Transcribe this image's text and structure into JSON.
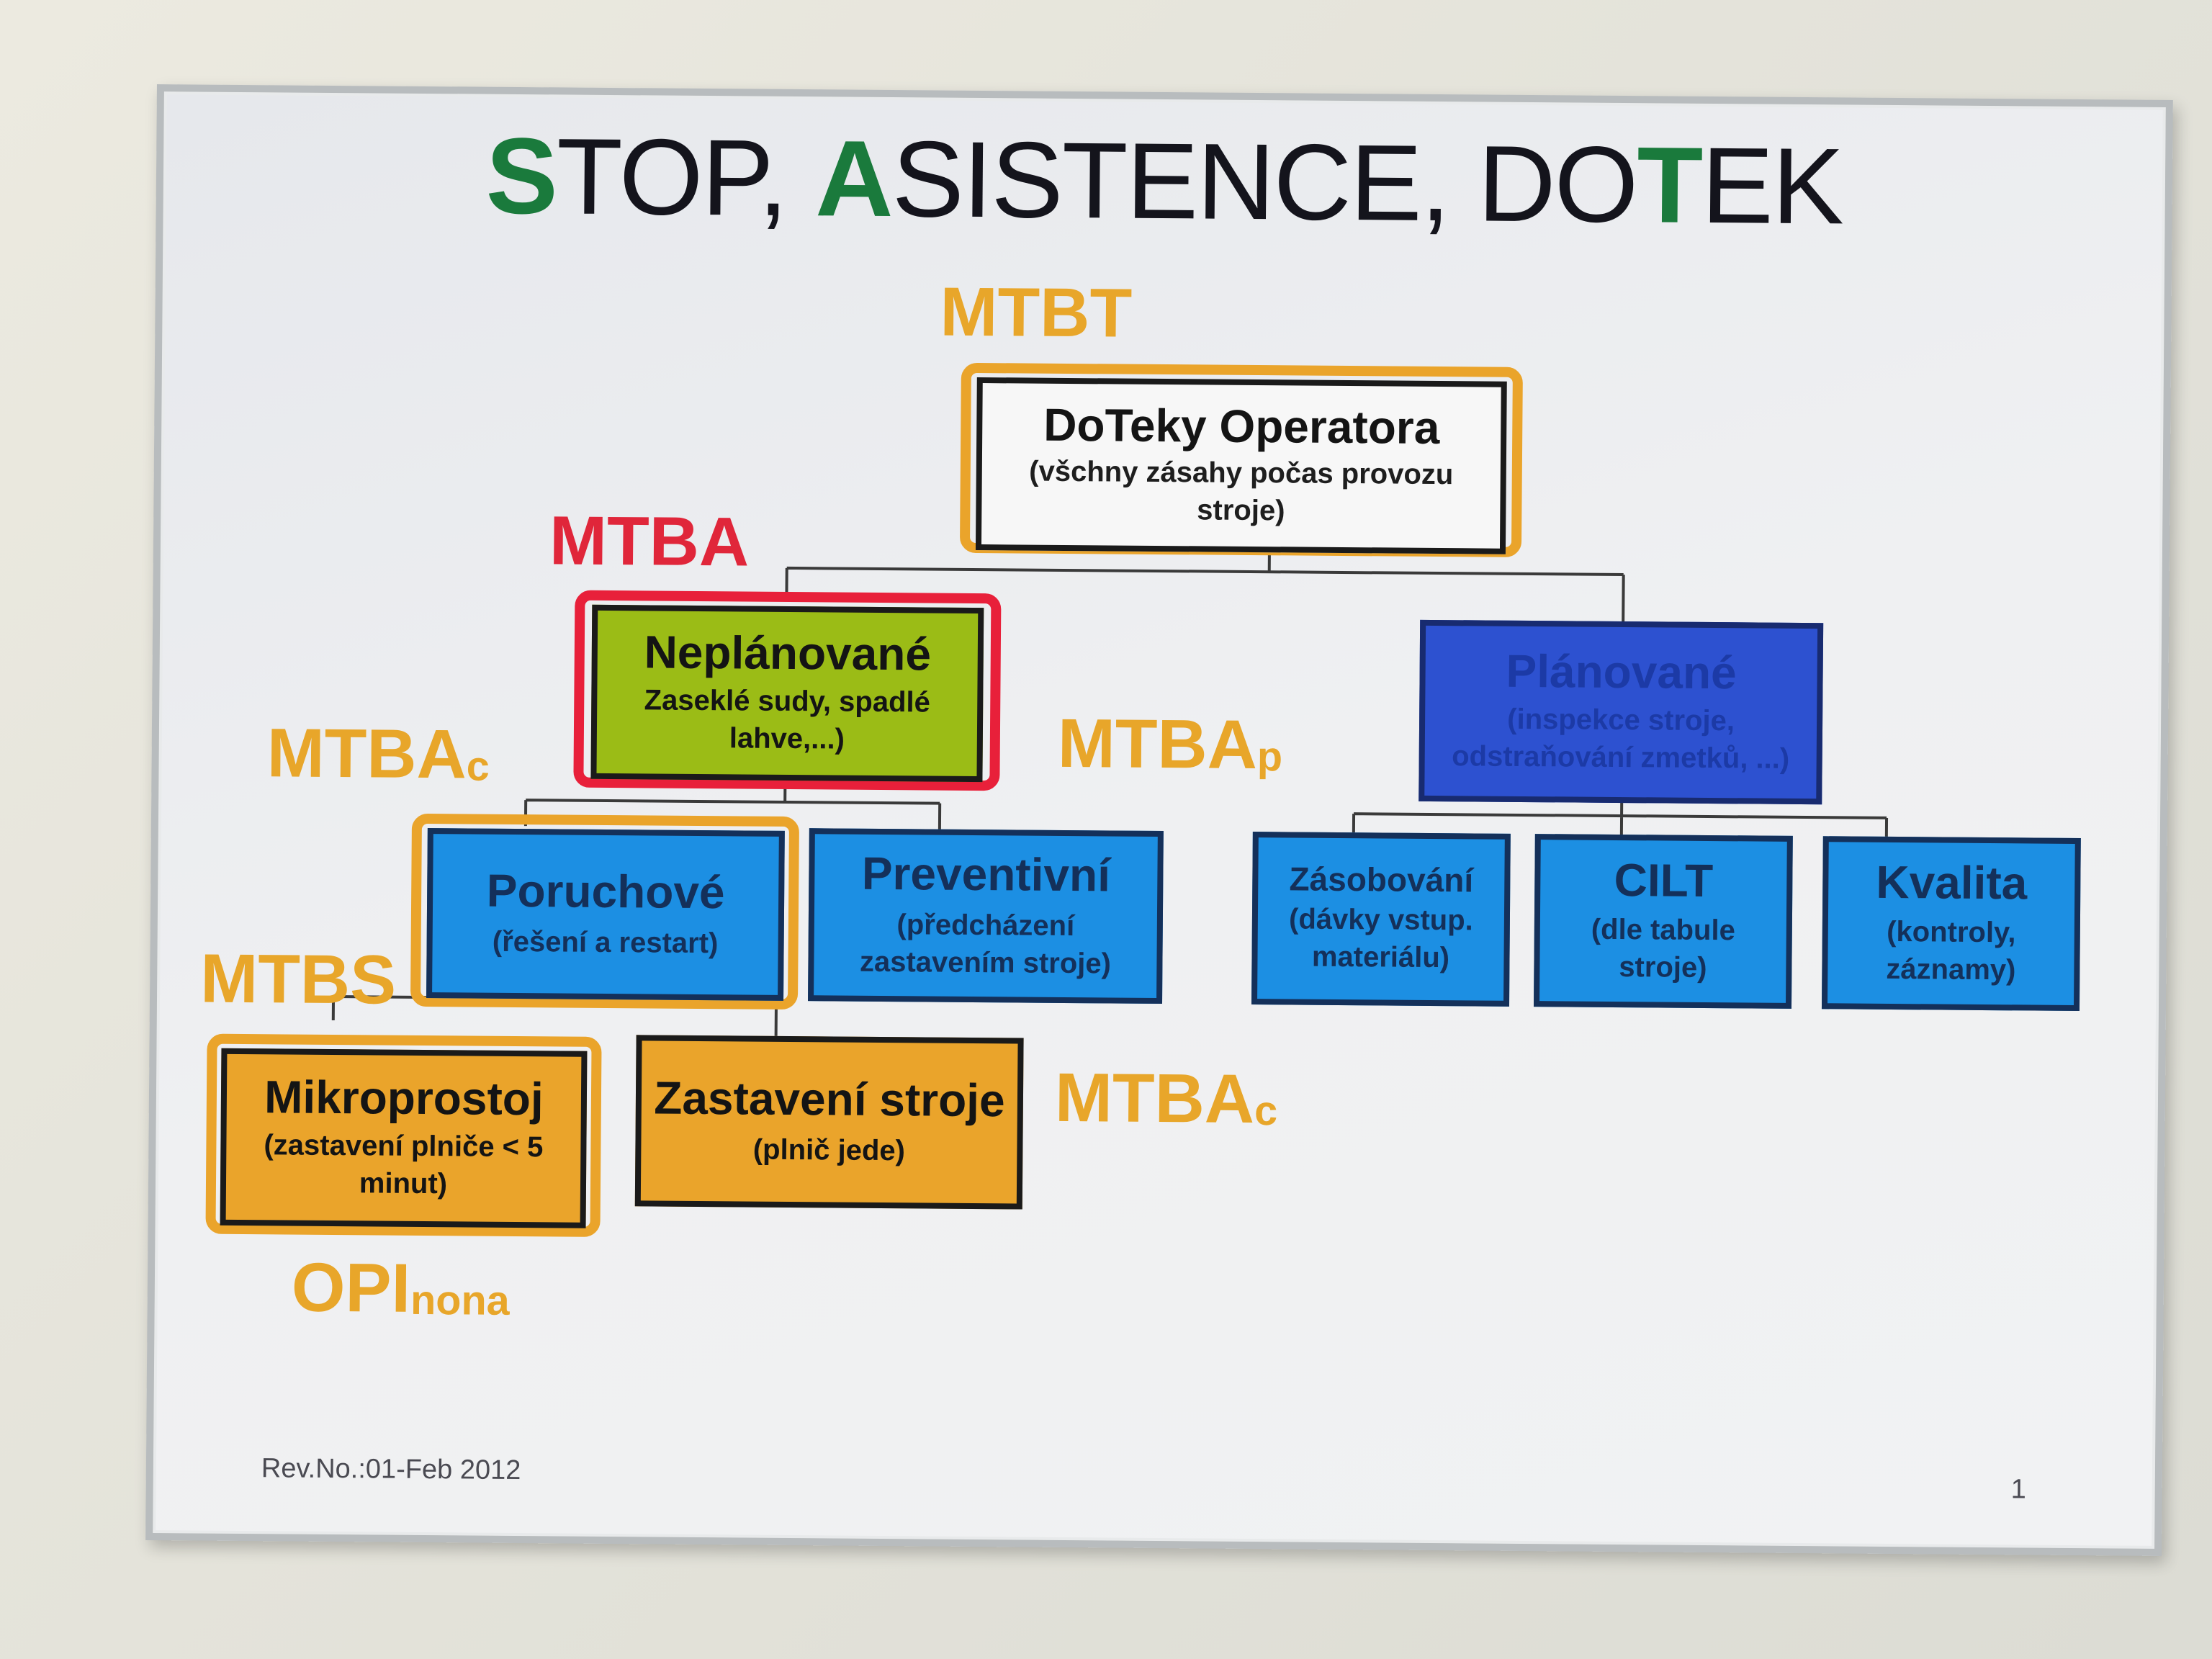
{
  "title": {
    "p1": "S",
    "p2": "TOP, ",
    "p3": "A",
    "p4": "SISTENCE, DO",
    "p5": "T",
    "p6": "EK"
  },
  "metrics": {
    "mtbt": "MTBT",
    "mtba": "MTBA",
    "mtbac_left": {
      "main": "MTBA",
      "sub": "c"
    },
    "mtbap": {
      "main": "MTBA",
      "sub": "p"
    },
    "mtbs": "MTBS",
    "mtbac_right": {
      "main": "MTBA",
      "sub": "c"
    },
    "opi": {
      "main": "OPI",
      "sub": "nona"
    }
  },
  "boxes": {
    "doteky": {
      "title": "DoTeky Operatora",
      "sub": "(všchny zásahy počas provozu stroje)"
    },
    "neplanovane": {
      "title": "Neplánované",
      "sub": "Zaseklé sudy, spadlé lahve,...)"
    },
    "planovane": {
      "title": "Plánované",
      "sub": "(inspekce stroje, odstraňování zmetků, ...)"
    },
    "poruchove": {
      "title": "Poruchové",
      "sub": "(řešení a restart)"
    },
    "preventivni": {
      "title": "Preventivní",
      "sub": "(předcházení zastavením stroje)"
    },
    "zasobovani": {
      "title": "Zásobování",
      "sub": "(dávky vstup. materiálu)"
    },
    "cilt": {
      "title": "CILT",
      "sub": "(dle tabule stroje)"
    },
    "kvalita": {
      "title": "Kvalita",
      "sub": "(kontroly, záznamy)"
    },
    "mikroprostoj": {
      "title": "Mikroprostoj",
      "sub": "(zastavení plniče < 5 minut)"
    },
    "zastaveni": {
      "title": "Zastavení stroje",
      "sub": "(plnič jede)"
    }
  },
  "footer": {
    "revision": "Rev.No.:01-Feb 2012",
    "page": "1"
  }
}
